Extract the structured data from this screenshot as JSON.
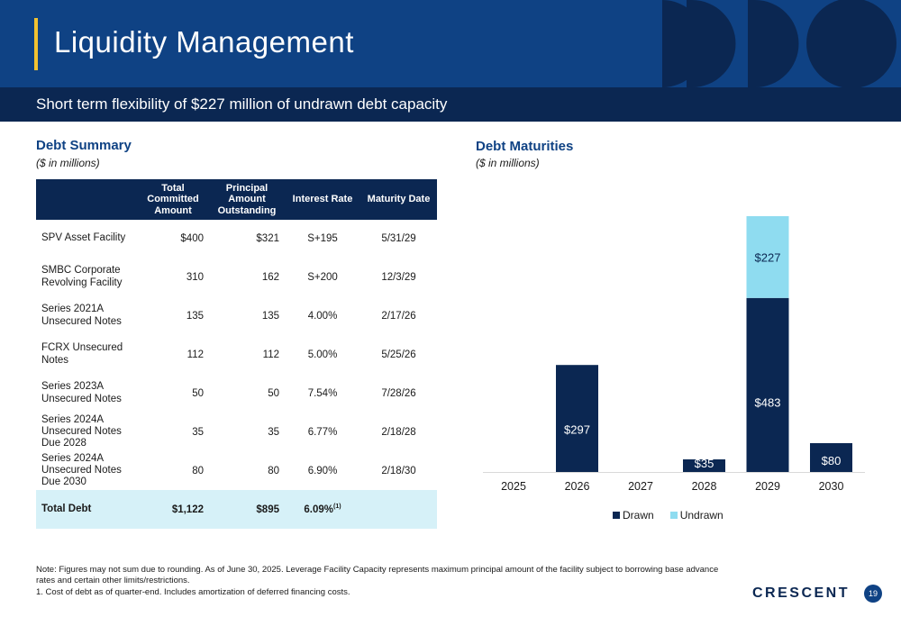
{
  "header": {
    "title": "Liquidity Management"
  },
  "subheader": {
    "text": "Short term flexibility of $227 million of undrawn debt capacity"
  },
  "debt_summary": {
    "title": "Debt Summary",
    "subtitle": "($ in millions)",
    "columns": [
      "",
      "Total Committed Amount",
      "Principal Amount Outstanding",
      "Interest Rate",
      "Maturity Date"
    ],
    "rows": [
      {
        "name": "SPV Asset Facility",
        "committed": "$400",
        "outstanding": "$321",
        "rate": "S+195",
        "maturity": "5/31/29"
      },
      {
        "name": "SMBC Corporate Revolving Facility",
        "committed": "310",
        "outstanding": "162",
        "rate": "S+200",
        "maturity": "12/3/29"
      },
      {
        "name": "Series 2021A Unsecured Notes",
        "committed": "135",
        "outstanding": "135",
        "rate": "4.00%",
        "maturity": "2/17/26"
      },
      {
        "name": "FCRX Unsecured Notes",
        "committed": "112",
        "outstanding": "112",
        "rate": "5.00%",
        "maturity": "5/25/26"
      },
      {
        "name": "Series 2023A Unsecured Notes",
        "committed": "50",
        "outstanding": "50",
        "rate": "7.54%",
        "maturity": "7/28/26"
      },
      {
        "name": "Series 2024A Unsecured Notes Due 2028",
        "committed": "35",
        "outstanding": "35",
        "rate": "6.77%",
        "maturity": "2/18/28"
      },
      {
        "name": "Series 2024A Unsecured Notes Due 2030",
        "committed": "80",
        "outstanding": "80",
        "rate": "6.90%",
        "maturity": "2/18/30"
      }
    ],
    "total": {
      "name": "Total Debt",
      "committed": "$1,122",
      "outstanding": "$895",
      "rate": "6.09%",
      "rate_footnote": "(1)",
      "maturity": ""
    }
  },
  "debt_maturities": {
    "title": "Debt Maturities",
    "subtitle": "($ in millions)"
  },
  "chart_data": {
    "type": "bar",
    "stacked": true,
    "categories": [
      "2025",
      "2026",
      "2027",
      "2028",
      "2029",
      "2030"
    ],
    "series": [
      {
        "name": "Drawn",
        "color": "#0b2752",
        "values": [
          0,
          297,
          0,
          35,
          483,
          80
        ],
        "labels": [
          "",
          "$297",
          "",
          "$35",
          "$483",
          "$80"
        ]
      },
      {
        "name": "Undrawn",
        "color": "#8fdcf0",
        "values": [
          0,
          0,
          0,
          0,
          227,
          0
        ],
        "labels": [
          "",
          "",
          "",
          "",
          "$227",
          ""
        ]
      }
    ],
    "title": "",
    "xlabel": "",
    "ylabel": "",
    "ylim": [
      0,
      710
    ],
    "grid": false,
    "legend": "bottom"
  },
  "footer": {
    "note": "Note: Figures may not sum due to rounding. As of June 30, 2025. Leverage Facility Capacity represents maximum principal amount of the facility subject to borrowing base advance rates and certain other limits/restrictions.",
    "footnote_1": "1.  Cost of debt as of quarter-end. Includes amortization of deferred financing costs.",
    "logo": "CRESCENT",
    "page": "19"
  },
  "colors": {
    "header_blue": "#0f4284",
    "navy": "#0b2752",
    "accent_yellow": "#f2c230",
    "light_cyan": "#d6f1f8",
    "undrawn": "#8fdcf0"
  }
}
